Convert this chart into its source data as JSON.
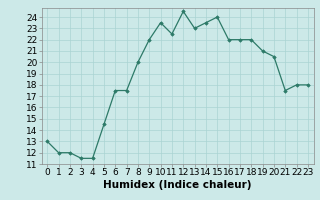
{
  "x": [
    0,
    1,
    2,
    3,
    4,
    5,
    6,
    7,
    8,
    9,
    10,
    11,
    12,
    13,
    14,
    15,
    16,
    17,
    18,
    19,
    20,
    21,
    22,
    23
  ],
  "y": [
    13,
    12,
    12,
    11.5,
    11.5,
    14.5,
    17.5,
    17.5,
    20,
    22,
    23.5,
    22.5,
    24.5,
    23,
    23.5,
    24,
    22,
    22,
    22,
    21,
    20.5,
    17.5,
    18,
    18
  ],
  "xlabel": "Humidex (Indice chaleur)",
  "xlim": [
    -0.5,
    23.5
  ],
  "ylim": [
    11,
    24.8
  ],
  "yticks": [
    11,
    12,
    13,
    14,
    15,
    16,
    17,
    18,
    19,
    20,
    21,
    22,
    23,
    24
  ],
  "xticks": [
    0,
    1,
    2,
    3,
    4,
    5,
    6,
    7,
    8,
    9,
    10,
    11,
    12,
    13,
    14,
    15,
    16,
    17,
    18,
    19,
    20,
    21,
    22,
    23
  ],
  "line_color": "#2d7a68",
  "marker": "D",
  "marker_size": 1.8,
  "bg_color": "#cce9e8",
  "grid_color": "#aad4d3",
  "label_fontsize": 7.5,
  "tick_fontsize": 6.5
}
